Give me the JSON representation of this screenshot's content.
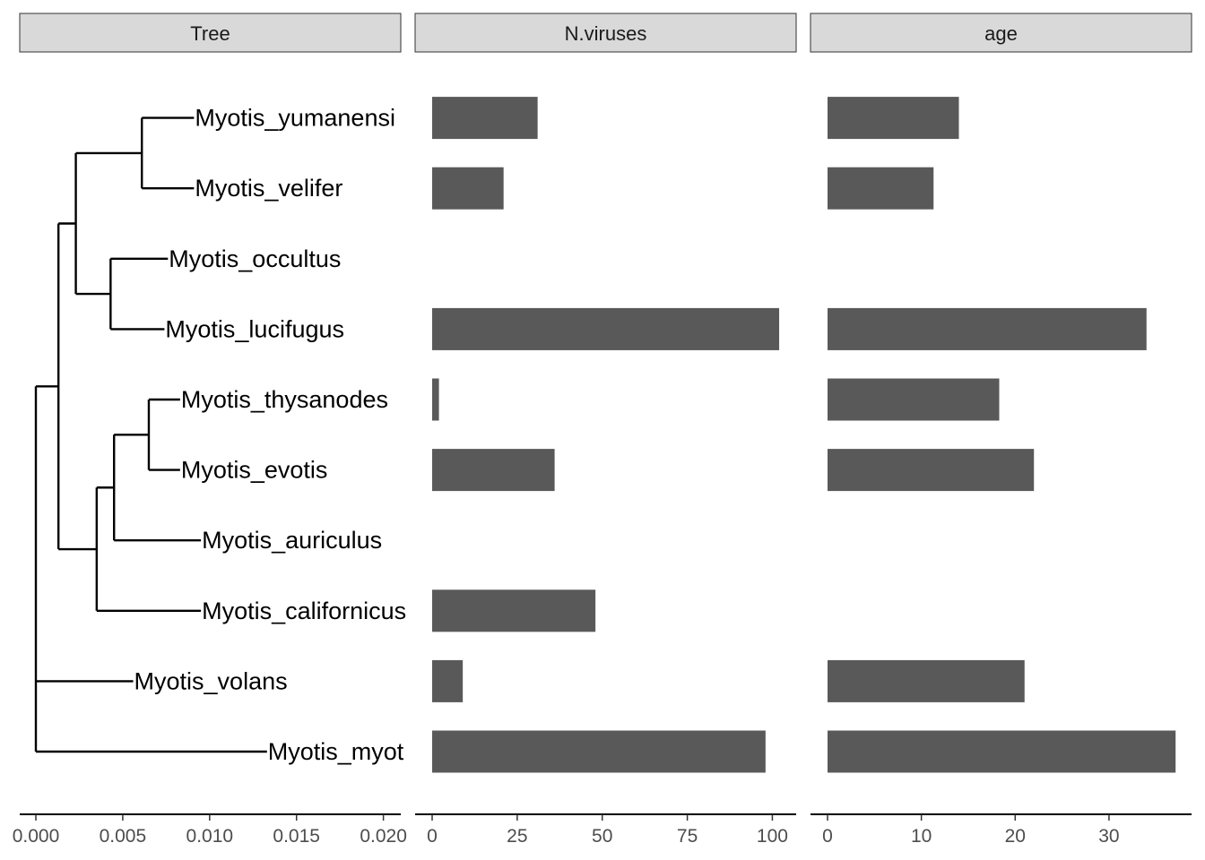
{
  "chart_data": [
    {
      "type": "tree",
      "panel": "Tree",
      "xlim": [
        0,
        0.021
      ],
      "ticks": [
        0.0,
        0.005,
        0.01,
        0.015,
        0.02
      ],
      "tick_labels": [
        "0.000",
        "0.005",
        "0.010",
        "0.015",
        "0.020"
      ],
      "nodes": [
        {
          "id": "root",
          "x": 0.0,
          "parent": null
        },
        {
          "id": "n2",
          "x": 0.0013,
          "parent": "root"
        },
        {
          "id": "n3",
          "x": 0.0023,
          "parent": "n2"
        },
        {
          "id": "n4",
          "x": 0.0061,
          "parent": "n3"
        },
        {
          "id": "n5",
          "x": 0.0043,
          "parent": "n3"
        },
        {
          "id": "n6",
          "x": 0.0035,
          "parent": "n2"
        },
        {
          "id": "n7",
          "x": 0.0045,
          "parent": "n6"
        },
        {
          "id": "n8",
          "x": 0.0065,
          "parent": "n7"
        }
      ],
      "tips": [
        {
          "label": "Myotis_yumanensi",
          "x": 0.0091,
          "parent": "n4",
          "y": 10
        },
        {
          "label": "Myotis_velifer",
          "x": 0.0091,
          "parent": "n4",
          "y": 9
        },
        {
          "label": "Myotis_occultus",
          "x": 0.0076,
          "parent": "n5",
          "y": 8
        },
        {
          "label": "Myotis_lucifugus",
          "x": 0.0074,
          "parent": "n5",
          "y": 7
        },
        {
          "label": "Myotis_thysanodes",
          "x": 0.0083,
          "parent": "n8",
          "y": 6
        },
        {
          "label": "Myotis_evotis",
          "x": 0.0083,
          "parent": "n8",
          "y": 5
        },
        {
          "label": "Myotis_auriculus",
          "x": 0.0095,
          "parent": "n7",
          "y": 4
        },
        {
          "label": "Myotis_californicus",
          "x": 0.0095,
          "parent": "n6",
          "y": 3
        },
        {
          "label": "Myotis_volans",
          "x": 0.0056,
          "parent": "root",
          "y": 2
        },
        {
          "label": "Myotis_myot",
          "x": 0.0133,
          "parent": "root",
          "y": 1
        }
      ]
    },
    {
      "type": "bar",
      "orientation": "horizontal",
      "panel": "N.viruses",
      "xlim": [
        0,
        107
      ],
      "ticks": [
        0,
        25,
        50,
        75,
        100
      ],
      "tick_labels": [
        "0",
        "25",
        "50",
        "75",
        "100"
      ],
      "categories": [
        "Myotis_yumanensi",
        "Myotis_velifer",
        "Myotis_occultus",
        "Myotis_lucifugus",
        "Myotis_thysanodes",
        "Myotis_evotis",
        "Myotis_auriculus",
        "Myotis_californicus",
        "Myotis_volans",
        "Myotis_myot"
      ],
      "values": [
        31,
        21,
        null,
        102,
        2,
        36,
        null,
        48,
        9,
        98
      ]
    },
    {
      "type": "bar",
      "orientation": "horizontal",
      "panel": "age",
      "xlim": [
        0,
        38.8
      ],
      "ticks": [
        0,
        10,
        20,
        30
      ],
      "tick_labels": [
        "0",
        "10",
        "20",
        "30"
      ],
      "categories": [
        "Myotis_yumanensi",
        "Myotis_velifer",
        "Myotis_occultus",
        "Myotis_lucifugus",
        "Myotis_thysanodes",
        "Myotis_evotis",
        "Myotis_auriculus",
        "Myotis_californicus",
        "Myotis_volans",
        "Myotis_myot"
      ],
      "values": [
        14,
        11.3,
        null,
        34,
        18.3,
        22,
        null,
        null,
        21,
        37.1
      ]
    }
  ],
  "style": {
    "bar_color": "#595959",
    "strip_fill": "#d9d9d9",
    "strip_border": "#333333",
    "tree_color": "#000000"
  }
}
